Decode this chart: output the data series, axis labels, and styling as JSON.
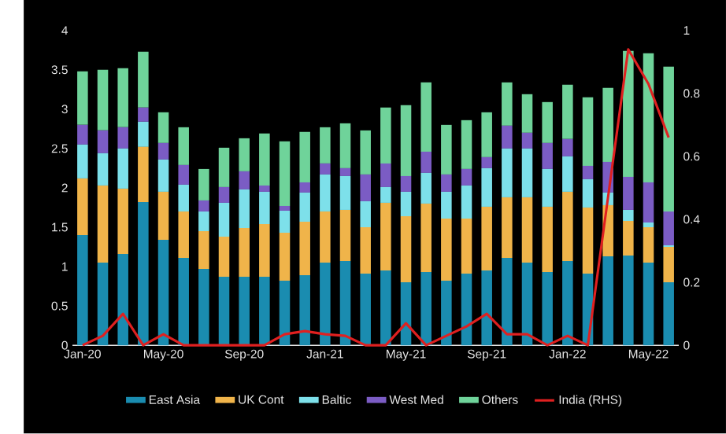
{
  "chart_data": {
    "type": "bar",
    "stacked": true,
    "legend": "bottom",
    "categories": [
      "Jan-20",
      null,
      null,
      null,
      "May-20",
      null,
      null,
      null,
      "Sep-20",
      null,
      null,
      null,
      "Jan-21",
      null,
      null,
      null,
      "May-21",
      null,
      null,
      null,
      "Sep-21",
      null,
      null,
      null,
      "Jan-22",
      null,
      null,
      null,
      "May-22",
      null
    ],
    "series": [
      {
        "name": "East Asia",
        "color": "#1a8cb0",
        "values": [
          1.4,
          1.05,
          1.16,
          1.82,
          1.34,
          1.11,
          0.97,
          0.87,
          0.87,
          0.87,
          0.82,
          0.89,
          1.05,
          1.07,
          0.91,
          0.95,
          0.8,
          0.93,
          0.82,
          0.91,
          0.95,
          1.11,
          1.05,
          0.93,
          1.07,
          0.91,
          1.13,
          1.14,
          1.05,
          0.8
        ]
      },
      {
        "name": "UK Cont",
        "color": "#f0b44a",
        "values": [
          0.72,
          0.98,
          0.83,
          0.7,
          0.61,
          0.59,
          0.48,
          0.51,
          0.62,
          0.67,
          0.61,
          0.68,
          0.65,
          0.65,
          0.59,
          0.86,
          0.84,
          0.87,
          0.79,
          0.7,
          0.81,
          0.77,
          0.83,
          0.83,
          0.88,
          0.84,
          0.65,
          0.44,
          0.45,
          0.45
        ]
      },
      {
        "name": "Baltic",
        "color": "#7de0ea",
        "values": [
          0.43,
          0.41,
          0.51,
          0.32,
          0.41,
          0.34,
          0.25,
          0.43,
          0.49,
          0.41,
          0.28,
          0.37,
          0.47,
          0.43,
          0.33,
          0.2,
          0.31,
          0.39,
          0.34,
          0.42,
          0.49,
          0.62,
          0.62,
          0.48,
          0.45,
          0.36,
          0.16,
          0.14,
          0.06,
          0.02
        ]
      },
      {
        "name": "West Med",
        "color": "#7b5cc4",
        "values": [
          0.25,
          0.29,
          0.27,
          0.18,
          0.21,
          0.25,
          0.14,
          0.2,
          0.23,
          0.08,
          0.06,
          0.13,
          0.14,
          0.1,
          0.34,
          0.3,
          0.2,
          0.27,
          0.22,
          0.21,
          0.14,
          0.29,
          0.2,
          0.33,
          0.22,
          0.17,
          0.39,
          0.42,
          0.51,
          0.43
        ]
      },
      {
        "name": "Others",
        "color": "#6fd39a",
        "values": [
          0.68,
          0.77,
          0.75,
          0.71,
          0.39,
          0.48,
          0.4,
          0.5,
          0.42,
          0.66,
          0.82,
          0.64,
          0.46,
          0.57,
          0.56,
          0.71,
          0.9,
          0.88,
          0.63,
          0.62,
          0.57,
          0.55,
          0.49,
          0.52,
          0.69,
          0.87,
          0.94,
          1.6,
          1.64,
          1.84
        ]
      },
      {
        "name": "India (RHS)",
        "type": "line",
        "axis": "y2",
        "color": "#e02020",
        "values": [
          0,
          0.03,
          0.1,
          0,
          0.035,
          0,
          0,
          0,
          0,
          0,
          0.035,
          0.045,
          0.035,
          0.03,
          0,
          0,
          0.07,
          0,
          0.03,
          0.06,
          0.1,
          0.035,
          0.035,
          0,
          0.03,
          0,
          0.47,
          0.94,
          0.83,
          0.66
        ]
      }
    ],
    "ylim": [
      0,
      4
    ],
    "yticks": [
      0,
      0.5,
      1,
      1.5,
      2,
      2.5,
      3,
      3.5,
      4
    ],
    "y2lim": [
      0,
      1
    ],
    "y2ticks": [
      0,
      0.2,
      0.4,
      0.6,
      0.8,
      1
    ]
  }
}
